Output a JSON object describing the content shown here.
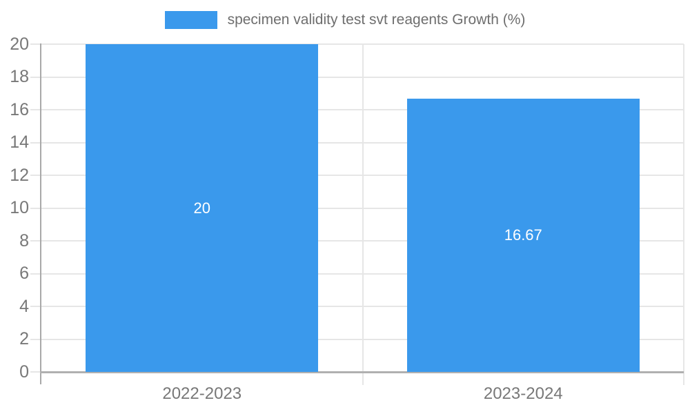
{
  "chart_data": {
    "type": "bar",
    "title": "",
    "xlabel": "",
    "ylabel": "",
    "legend_label": "specimen validity test svt reagents Growth (%)",
    "legend_position": "top",
    "categories": [
      "2022-2023",
      "2023-2024"
    ],
    "series": [
      {
        "name": "specimen validity test svt reagents Growth (%)",
        "values": [
          20,
          16.67
        ]
      }
    ],
    "value_labels": [
      "20",
      "16.67"
    ],
    "ylim": [
      0,
      20
    ],
    "ytick_step": 2,
    "yticks": [
      0,
      2,
      4,
      6,
      8,
      10,
      12,
      14,
      16,
      18,
      20
    ],
    "grid": true,
    "colors": {
      "bar": "#3a99ec",
      "bar_value_text": "#ffffff",
      "tick_text": "#787878",
      "legend_text": "#6e6e6e",
      "gridline": "#e6e6e6",
      "axis_line": "#a9a9a9",
      "baseline": "#b0b0b0",
      "background": "#ffffff"
    }
  }
}
